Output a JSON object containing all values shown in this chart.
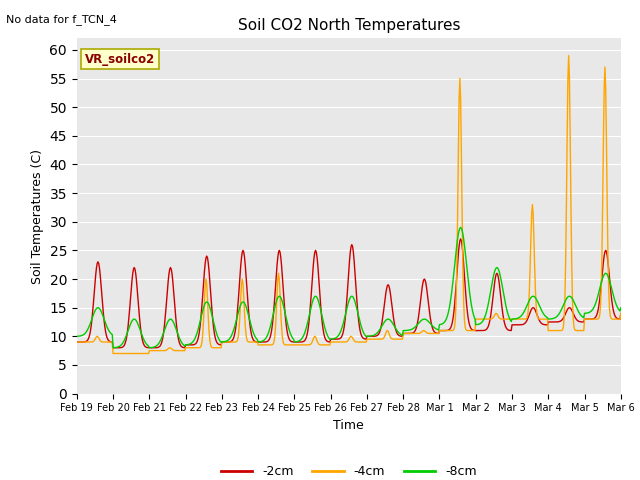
{
  "title": "Soil CO2 North Temperatures",
  "subtitle": "No data for f_TCN_4",
  "xlabel": "Time",
  "ylabel": "Soil Temperatures (C)",
  "ylim": [
    0,
    62
  ],
  "yticks": [
    0,
    5,
    10,
    15,
    20,
    25,
    30,
    35,
    40,
    45,
    50,
    55,
    60
  ],
  "bg_color": "#e8e8e8",
  "line_colors": {
    "-2cm": "#cc0000",
    "-4cm": "#ffa500",
    "-8cm": "#00cc00"
  },
  "legend_label": "VR_soilco2",
  "x_tick_labels": [
    "Feb 19",
    "Feb 20",
    "Feb 21",
    "Feb 22",
    "Feb 23",
    "Feb 24",
    "Feb 25",
    "Feb 26",
    "Feb 27",
    "Feb 28",
    "Mar 1",
    "Mar 2",
    "Mar 3",
    "Mar 4",
    "Mar 5",
    "Mar 6"
  ]
}
